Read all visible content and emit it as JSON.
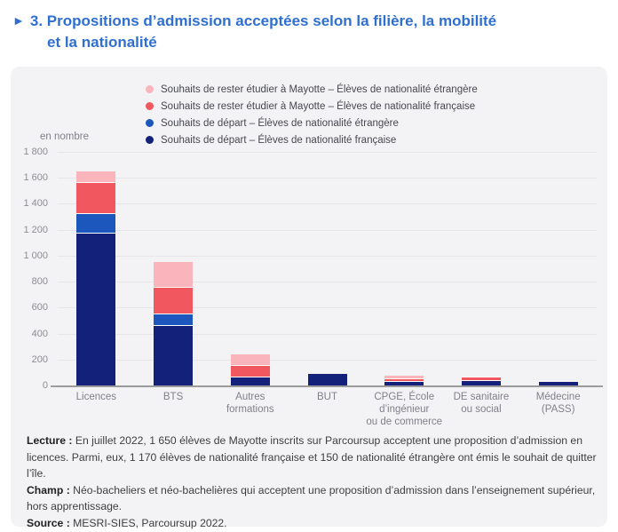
{
  "title": {
    "marker": "►",
    "line1": "3. Propositions d’admission acceptées selon la filière, la mobilité",
    "line2": "et la nationalité"
  },
  "legend": {
    "items": [
      {
        "label": "Souhaits de rester étudier à Mayotte – Élèves de nationalité étrangère",
        "color": "#f9b4bc"
      },
      {
        "label": "Souhaits de rester étudier à Mayotte – Élèves de nationalité française",
        "color": "#f1575f"
      },
      {
        "label": "Souhaits de départ – Élèves de nationalité étrangère",
        "color": "#1c57be"
      },
      {
        "label": "Souhaits de départ – Élèves de nationalité française",
        "color": "#13217a"
      }
    ]
  },
  "chart_data": {
    "type": "bar",
    "stacked": true,
    "title": "Propositions d’admission acceptées selon la filière, la mobilité et la nationalité",
    "unit_label": "en nombre",
    "categories": [
      "Licences",
      "BTS",
      "Autres formations",
      "BUT",
      "CPGE, École d’ingénieur ou de commerce",
      "DE sanitaire ou social",
      "Médecine (PASS)"
    ],
    "category_lines": [
      [
        "Licences"
      ],
      [
        "BTS"
      ],
      [
        "Autres",
        "formations"
      ],
      [
        "BUT"
      ],
      [
        "CPGE, École",
        "d’ingénieur",
        "ou de commerce"
      ],
      [
        "DE sanitaire",
        "ou social"
      ],
      [
        "Médecine",
        "(PASS)"
      ]
    ],
    "series": [
      {
        "name": "Souhaits de départ – Élèves de nationalité française",
        "color": "#13217a",
        "values": [
          1170,
          460,
          60,
          90,
          30,
          35,
          25
        ]
      },
      {
        "name": "Souhaits de départ – Élèves de nationalité étrangère",
        "color": "#1c57be",
        "values": [
          150,
          90,
          0,
          0,
          0,
          0,
          0
        ]
      },
      {
        "name": "Souhaits de rester étudier à Mayotte – Élèves de nationalité française",
        "color": "#f1575f",
        "values": [
          240,
          200,
          90,
          0,
          20,
          25,
          0
        ]
      },
      {
        "name": "Souhaits de rester étudier à Mayotte – Élèves de nationalité étrangère",
        "color": "#f9b4bc",
        "values": [
          90,
          200,
          90,
          0,
          25,
          10,
          0
        ]
      }
    ],
    "ylim": [
      0,
      1800
    ],
    "ytick_step": 200,
    "ytick_labels": [
      "0",
      "200",
      "400",
      "600",
      "800",
      "1 000",
      "1 200",
      "1 400",
      "1 600",
      "1 800"
    ],
    "grid": true,
    "legend_position": "top"
  },
  "notes": [
    {
      "label": "Lecture :",
      "text": " En juillet 2022, 1 650 élèves de Mayotte inscrits sur Parcoursup acceptent une proposition d’admission en licences. Parmi, eux, 1 170 élèves de nationalité française et 150 de nationalité étrangère ont émis le souhait de quitter l’île."
    },
    {
      "label": "Champ :",
      "text": " Néo-bacheliers et néo-bachelières qui acceptent une proposition d’admission dans l’enseignement supérieur, hors apprentissage."
    },
    {
      "label": "Source :",
      "text": " MESRI-SIES, Parcoursup 2022."
    }
  ],
  "colors": {
    "title_blue": "#2e6fd0",
    "panel_bg": "#f3f3f5",
    "axis_line": "#9b9b9b",
    "gridline": "#e6e6e9",
    "tick_text": "#8c8c92",
    "note_text": "#3f3f3f"
  }
}
